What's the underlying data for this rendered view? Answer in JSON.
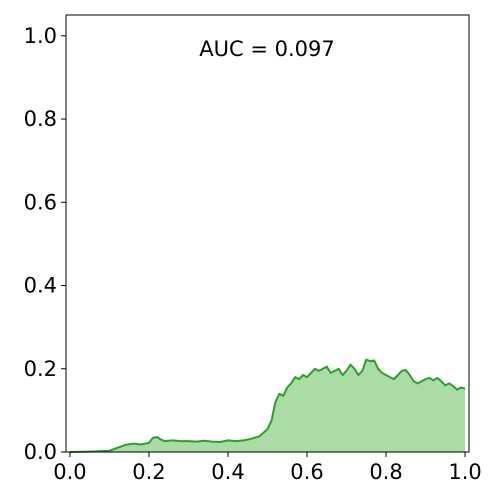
{
  "chart_data": {
    "type": "area",
    "title": "",
    "xlabel": "",
    "ylabel": "",
    "xlim": [
      -0.01,
      1.01
    ],
    "ylim": [
      0.0,
      1.05
    ],
    "x_ticks": [
      0.0,
      0.2,
      0.4,
      0.6,
      0.8,
      1.0
    ],
    "x_tick_labels": [
      "0.0",
      "0.2",
      "0.4",
      "0.6",
      "0.8",
      "1.0"
    ],
    "y_ticks": [
      0.0,
      0.2,
      0.4,
      0.6,
      0.8,
      1.0
    ],
    "y_tick_labels": [
      "0.0",
      "0.2",
      "0.4",
      "0.6",
      "0.8",
      "1.0"
    ],
    "grid": false,
    "annotation": "AUC = 0.097",
    "line_color": "#2ca02c",
    "fill_color": "#acdca6",
    "series": [
      {
        "x": [
          0.0,
          0.05,
          0.1,
          0.12,
          0.14,
          0.16,
          0.18,
          0.2,
          0.21,
          0.22,
          0.23,
          0.24,
          0.26,
          0.28,
          0.3,
          0.32,
          0.34,
          0.36,
          0.38,
          0.4,
          0.42,
          0.44,
          0.46,
          0.48,
          0.5,
          0.51,
          0.52,
          0.53,
          0.54,
          0.55,
          0.56,
          0.57,
          0.58,
          0.59,
          0.6,
          0.61,
          0.62,
          0.63,
          0.64,
          0.65,
          0.66,
          0.67,
          0.68,
          0.69,
          0.7,
          0.71,
          0.72,
          0.73,
          0.74,
          0.75,
          0.76,
          0.77,
          0.78,
          0.79,
          0.8,
          0.81,
          0.82,
          0.83,
          0.84,
          0.85,
          0.86,
          0.87,
          0.88,
          0.89,
          0.9,
          0.91,
          0.92,
          0.93,
          0.94,
          0.95,
          0.96,
          0.97,
          0.98,
          0.99,
          1.0
        ],
        "y": [
          0.0,
          0.001,
          0.003,
          0.01,
          0.017,
          0.02,
          0.018,
          0.022,
          0.034,
          0.036,
          0.03,
          0.026,
          0.028,
          0.026,
          0.026,
          0.025,
          0.027,
          0.025,
          0.024,
          0.028,
          0.026,
          0.028,
          0.032,
          0.038,
          0.055,
          0.075,
          0.12,
          0.14,
          0.135,
          0.155,
          0.165,
          0.18,
          0.175,
          0.185,
          0.18,
          0.19,
          0.2,
          0.195,
          0.2,
          0.205,
          0.19,
          0.195,
          0.2,
          0.185,
          0.195,
          0.21,
          0.2,
          0.185,
          0.195,
          0.222,
          0.218,
          0.22,
          0.2,
          0.19,
          0.185,
          0.18,
          0.175,
          0.185,
          0.195,
          0.197,
          0.185,
          0.17,
          0.165,
          0.17,
          0.175,
          0.178,
          0.172,
          0.178,
          0.17,
          0.16,
          0.165,
          0.158,
          0.15,
          0.155,
          0.152
        ]
      }
    ]
  }
}
